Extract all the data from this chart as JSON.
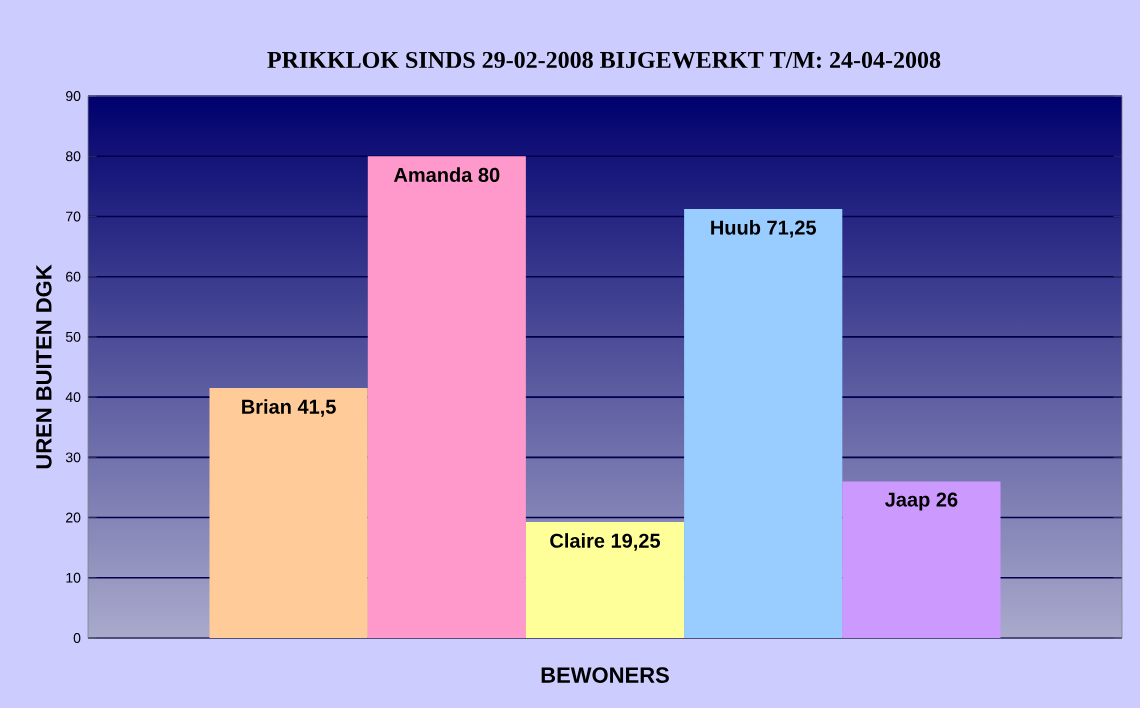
{
  "chart_data": {
    "type": "bar",
    "title": "PRIKKLOK SINDS 29-02-2008 BIJGEWERKT T/M: 24-04-2008",
    "xlabel": "BEWONERS",
    "ylabel": "UREN BUITEN DGK",
    "categories": [
      null
    ],
    "series": [
      {
        "name": "Brian",
        "color": "#ffcc99",
        "values": [
          41.5
        ],
        "value_labels": [
          "41,5"
        ]
      },
      {
        "name": "Amanda",
        "color": "#ff99cc",
        "values": [
          80
        ],
        "value_labels": [
          "80"
        ]
      },
      {
        "name": "Claire",
        "color": "#ffff99",
        "values": [
          19.25
        ],
        "value_labels": [
          "19,25"
        ]
      },
      {
        "name": "Huub",
        "color": "#99ccff",
        "values": [
          71.25
        ],
        "value_labels": [
          "71,25"
        ]
      },
      {
        "name": "Jaap",
        "color": "#cc99ff",
        "values": [
          26
        ],
        "value_labels": [
          "26"
        ]
      }
    ],
    "ylim": [
      0,
      90
    ],
    "yticks": [
      0,
      10,
      20,
      30,
      40,
      50,
      60,
      70,
      80,
      90
    ],
    "grid": "y"
  }
}
